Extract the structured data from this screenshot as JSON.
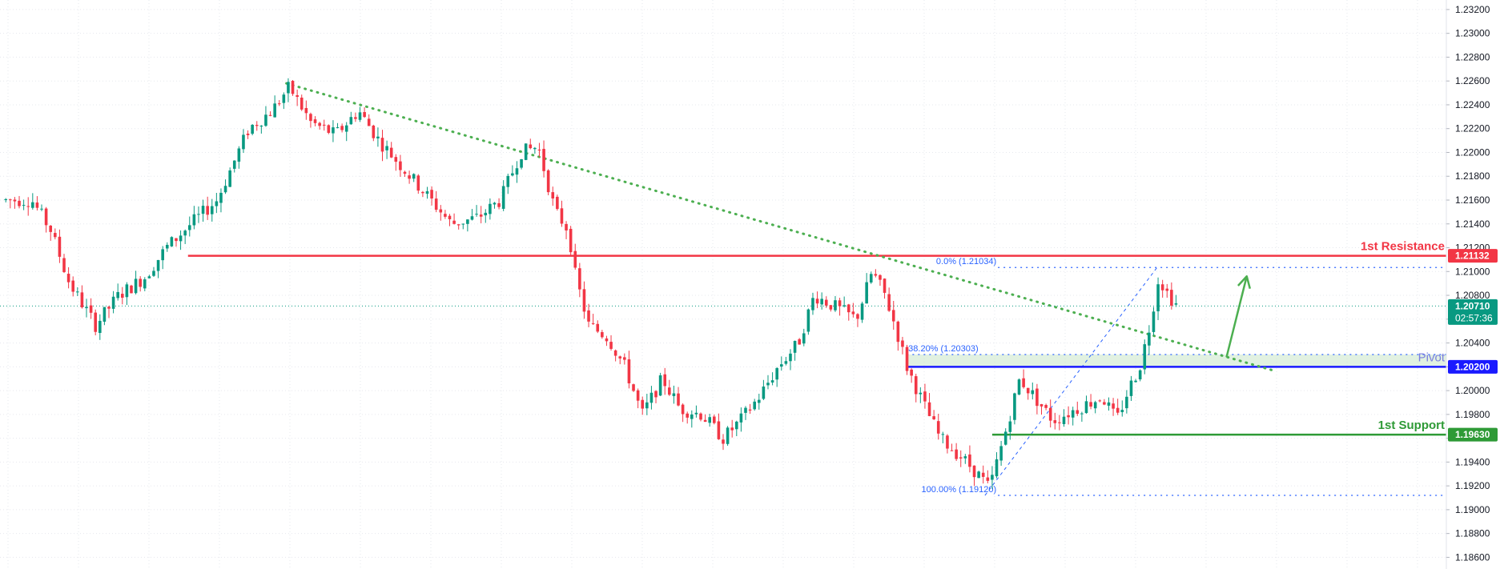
{
  "chart_data": {
    "type": "candlestick",
    "y_axis": {
      "position": "right",
      "range": [
        1.18502,
        1.2328
      ],
      "ticks": [
        "1.23200",
        "1.23000",
        "1.22800",
        "1.22600",
        "1.22400",
        "1.22200",
        "1.22000",
        "1.21800",
        "1.21600",
        "1.21400",
        "1.21200",
        "1.21000",
        "1.20800",
        "1.20600",
        "1.20400",
        "1.20200",
        "1.20000",
        "1.19800",
        "1.19600",
        "1.19400",
        "1.19200",
        "1.19000",
        "1.18800",
        "1.18600"
      ]
    },
    "grid": true,
    "current_price": {
      "value": 1.2071,
      "label": "1.20710",
      "countdown": "02:57:36",
      "color": "#089981"
    },
    "levels": [
      {
        "name": "1st Resistance",
        "value": 1.21132,
        "label": "1.21132",
        "color": "#f23645",
        "start_x": 0.13
      },
      {
        "name": "Pivot",
        "value": 1.202,
        "label": "1.20200",
        "color": "#1a1aff",
        "start_x": 0.627
      },
      {
        "name": "1st Support",
        "value": 1.1963,
        "label": "1.19630",
        "color": "#2e9a36",
        "start_x": 0.686
      }
    ],
    "fibonacci": {
      "color": "#2962ff",
      "levels": [
        {
          "text": "0.0% (1.21034)",
          "value": 1.21034
        },
        {
          "text": "38.20% (1.20303)",
          "value": 1.20303
        },
        {
          "text": "100.00% (1.19120)",
          "value": 1.1912
        }
      ],
      "anchor_low": {
        "t": 0.681,
        "price": 1.1912
      },
      "anchor_high": {
        "t": 0.8,
        "price": 1.21034
      },
      "zone": [
        1.202,
        1.20303
      ]
    },
    "trendline": {
      "color": "#4caf50",
      "from": {
        "t": 0.198,
        "price": 1.2258
      },
      "to": {
        "t": 0.88,
        "price": 1.2017
      }
    },
    "projection_arrow": {
      "color": "#4caf50",
      "from": {
        "t": 0.848,
        "price": 1.2028
      },
      "to": {
        "t": 0.862,
        "price": 1.2096
      }
    },
    "price_path": [
      {
        "t": 0.0,
        "price": 1.216
      },
      {
        "t": 0.022,
        "price": 1.216
      },
      {
        "t": 0.035,
        "price": 1.2135
      },
      {
        "t": 0.048,
        "price": 1.209
      },
      {
        "t": 0.066,
        "price": 1.2055
      },
      {
        "t": 0.082,
        "price": 1.208
      },
      {
        "t": 0.1,
        "price": 1.2095
      },
      {
        "t": 0.115,
        "price": 1.212
      },
      {
        "t": 0.132,
        "price": 1.214
      },
      {
        "t": 0.15,
        "price": 1.216
      },
      {
        "t": 0.172,
        "price": 1.222
      },
      {
        "t": 0.188,
        "price": 1.2235
      },
      {
        "t": 0.2,
        "price": 1.2255
      },
      {
        "t": 0.215,
        "price": 1.2225
      },
      {
        "t": 0.232,
        "price": 1.2215
      },
      {
        "t": 0.248,
        "price": 1.2235
      },
      {
        "t": 0.262,
        "price": 1.221
      },
      {
        "t": 0.28,
        "price": 1.2185
      },
      {
        "t": 0.298,
        "price": 1.216
      },
      {
        "t": 0.312,
        "price": 1.214
      },
      {
        "t": 0.33,
        "price": 1.2145
      },
      {
        "t": 0.346,
        "price": 1.216
      },
      {
        "t": 0.36,
        "price": 1.22
      },
      {
        "t": 0.372,
        "price": 1.2205
      },
      {
        "t": 0.384,
        "price": 1.215
      },
      {
        "t": 0.393,
        "price": 1.2135
      },
      {
        "t": 0.398,
        "price": 1.2095
      },
      {
        "t": 0.407,
        "price": 1.2055
      },
      {
        "t": 0.42,
        "price": 1.2045
      },
      {
        "t": 0.432,
        "price": 1.202
      },
      {
        "t": 0.444,
        "price": 1.198
      },
      {
        "t": 0.458,
        "price": 1.201
      },
      {
        "t": 0.47,
        "price": 1.1985
      },
      {
        "t": 0.485,
        "price": 1.198
      },
      {
        "t": 0.5,
        "price": 1.196
      },
      {
        "t": 0.512,
        "price": 1.1975
      },
      {
        "t": 0.525,
        "price": 1.1995
      },
      {
        "t": 0.538,
        "price": 1.202
      },
      {
        "t": 0.552,
        "price": 1.204
      },
      {
        "t": 0.563,
        "price": 1.208
      },
      {
        "t": 0.578,
        "price": 1.207
      },
      {
        "t": 0.592,
        "price": 1.206
      },
      {
        "t": 0.603,
        "price": 1.21
      },
      {
        "t": 0.612,
        "price": 1.208
      },
      {
        "t": 0.62,
        "price": 1.205
      },
      {
        "t": 0.627,
        "price": 1.202
      },
      {
        "t": 0.638,
        "price": 1.199
      },
      {
        "t": 0.65,
        "price": 1.196
      },
      {
        "t": 0.664,
        "price": 1.1945
      },
      {
        "t": 0.676,
        "price": 1.193
      },
      {
        "t": 0.684,
        "price": 1.1918
      },
      {
        "t": 0.694,
        "price": 1.196
      },
      {
        "t": 0.705,
        "price": 1.201
      },
      {
        "t": 0.715,
        "price": 1.1995
      },
      {
        "t": 0.728,
        "price": 1.1975
      },
      {
        "t": 0.745,
        "price": 1.1985
      },
      {
        "t": 0.762,
        "price": 1.1995
      },
      {
        "t": 0.772,
        "price": 1.1975
      },
      {
        "t": 0.78,
        "price": 1.2
      },
      {
        "t": 0.788,
        "price": 1.202
      },
      {
        "t": 0.795,
        "price": 1.2055
      },
      {
        "t": 0.801,
        "price": 1.2095
      },
      {
        "t": 0.808,
        "price": 1.208
      },
      {
        "t": 0.815,
        "price": 1.207
      }
    ]
  }
}
